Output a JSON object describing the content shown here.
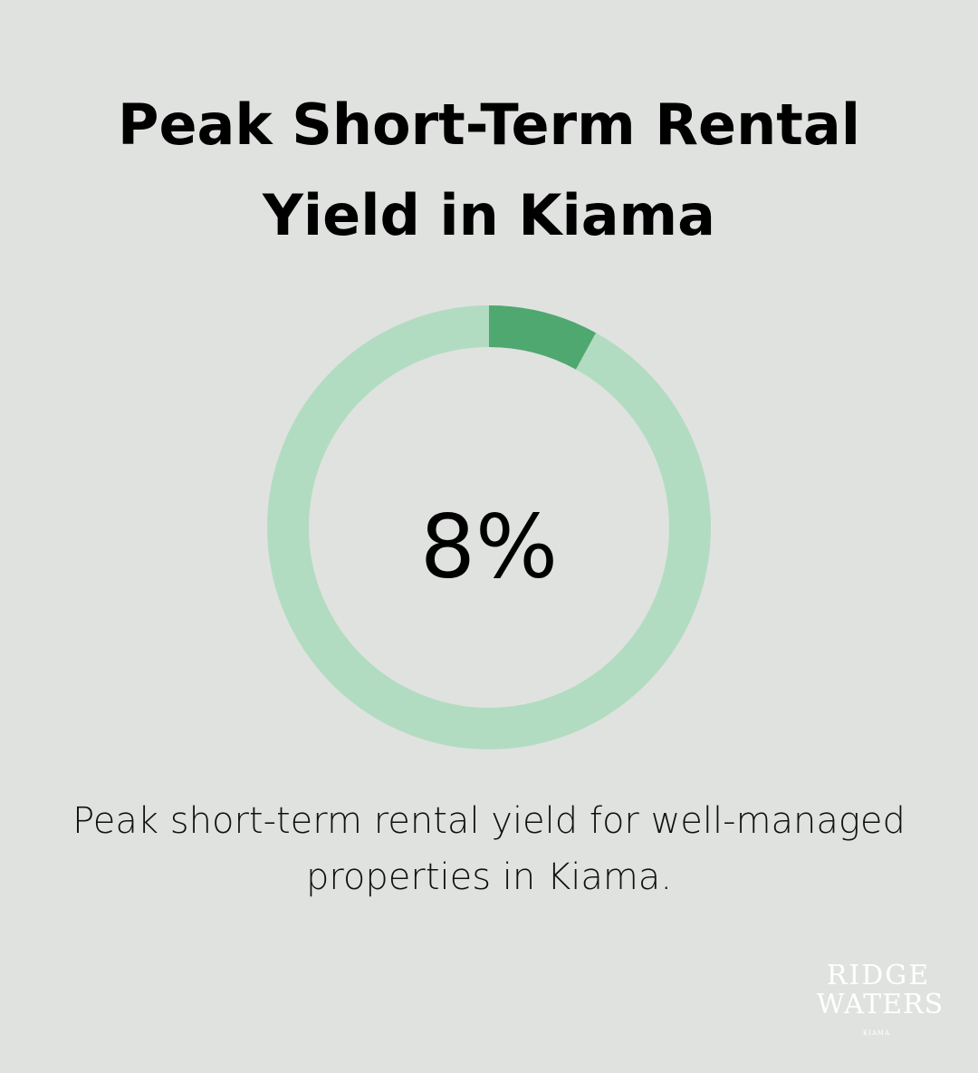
{
  "chart_data": {
    "type": "donut",
    "title": "Peak Short-Term Rental Yield in Kiama",
    "values": [
      8
    ],
    "value_labels": [
      "8%"
    ],
    "ylim": [
      0,
      100
    ],
    "color": "#4fa86f",
    "track_color": "#b2dcc1",
    "description": "Peak short-term rental yield for well-managed properties in Kiama.",
    "logo": {
      "line1": "RIDGE",
      "line2": "WATERS",
      "line3": "KIAMA"
    }
  }
}
